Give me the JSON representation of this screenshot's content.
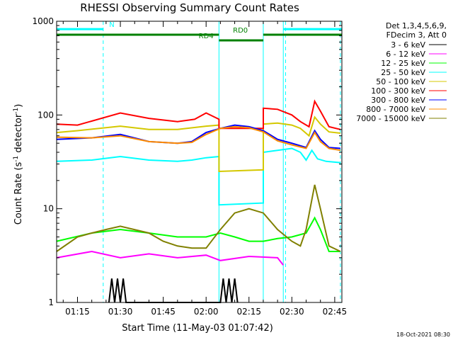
{
  "chart_data": {
    "type": "line",
    "title": "RHESSI Observing Summary Count Rates",
    "xlabel": "Start Time (11-May-03 01:07:42)",
    "ylabel_main": "Count Rate (s",
    "ylabel_exp1": "-1",
    "ylabel_mid": " detector",
    "ylabel_exp2": "-1",
    "ylabel_end": ")",
    "yscale": "log",
    "ylim": [
      1,
      1000
    ],
    "xlim_minutes": [
      67.7,
      167.5
    ],
    "xticks": [
      {
        "t": 75,
        "label": "01:15"
      },
      {
        "t": 90,
        "label": "01:30"
      },
      {
        "t": 105,
        "label": "01:45"
      },
      {
        "t": 120,
        "label": "02:00"
      },
      {
        "t": 135,
        "label": "02:15"
      },
      {
        "t": 150,
        "label": "02:30"
      },
      {
        "t": 165,
        "label": "02:45"
      }
    ],
    "yticks": [
      {
        "v": 1,
        "label": "1"
      },
      {
        "v": 10,
        "label": "10"
      },
      {
        "v": 100,
        "label": "100"
      },
      {
        "v": 1000,
        "label": "1000"
      }
    ],
    "legend_header": [
      "Det 1,3,4,5,6,9,",
      "FDecim 3, Att 0"
    ],
    "series": [
      {
        "name": "3 - 6 keV",
        "color": "#000000",
        "points": [
          [
            86,
            1
          ],
          [
            87,
            1.8
          ],
          [
            88,
            1
          ],
          [
            89,
            1.8
          ],
          [
            90,
            1
          ],
          [
            91,
            1.8
          ],
          [
            92,
            1
          ],
          [
            125,
            1
          ],
          [
            126,
            1.8
          ],
          [
            127,
            1
          ],
          [
            128,
            1.8
          ],
          [
            129,
            1
          ],
          [
            130,
            1.8
          ],
          [
            131,
            1
          ]
        ]
      },
      {
        "name": "6 - 12 keV",
        "color": "#ff00ff",
        "points": [
          [
            67.7,
            3
          ],
          [
            80,
            3.5
          ],
          [
            90,
            3
          ],
          [
            100,
            3.3
          ],
          [
            110,
            3
          ],
          [
            120,
            3.2
          ],
          [
            125,
            2.8
          ],
          [
            135,
            3.1
          ],
          [
            145,
            3
          ],
          [
            147,
            2.5
          ]
        ]
      },
      {
        "name": "12 - 25 keV",
        "color": "#00ff00",
        "points": [
          [
            67.7,
            4.5
          ],
          [
            80,
            5.5
          ],
          [
            90,
            6
          ],
          [
            100,
            5.5
          ],
          [
            110,
            5
          ],
          [
            120,
            5
          ],
          [
            125,
            5.5
          ],
          [
            130,
            5
          ],
          [
            135,
            4.5
          ],
          [
            140,
            4.5
          ],
          [
            145,
            4.8
          ],
          [
            150,
            5
          ],
          [
            155,
            5.5
          ],
          [
            158,
            8
          ],
          [
            160,
            6
          ],
          [
            163,
            3.5
          ],
          [
            167,
            3.5
          ]
        ]
      },
      {
        "name": "25 - 50 keV",
        "color": "#00ffff",
        "points": [
          [
            67.7,
            32
          ],
          [
            80,
            33
          ],
          [
            90,
            36
          ],
          [
            100,
            33
          ],
          [
            110,
            32
          ],
          [
            115,
            33
          ],
          [
            120,
            35
          ],
          [
            124.5,
            36
          ],
          [
            124.5,
            11
          ],
          [
            140,
            11.5
          ],
          [
            140,
            40
          ],
          [
            145,
            42
          ],
          [
            150,
            44
          ],
          [
            153,
            40
          ],
          [
            155,
            33
          ],
          [
            157,
            42
          ],
          [
            159,
            34
          ],
          [
            162,
            32
          ],
          [
            167,
            31
          ]
        ]
      },
      {
        "name": "50 - 100 keV",
        "color": "#d4c800",
        "points": [
          [
            67.7,
            65
          ],
          [
            75,
            68
          ],
          [
            90,
            76
          ],
          [
            100,
            70
          ],
          [
            110,
            70
          ],
          [
            120,
            76
          ],
          [
            124.5,
            78
          ],
          [
            124.5,
            25
          ],
          [
            140,
            26
          ],
          [
            140,
            80
          ],
          [
            145,
            82
          ],
          [
            150,
            78
          ],
          [
            153,
            72
          ],
          [
            156,
            60
          ],
          [
            158,
            95
          ],
          [
            160,
            80
          ],
          [
            163,
            66
          ],
          [
            167,
            64
          ]
        ]
      },
      {
        "name": "100 - 300 keV",
        "color": "#ff0000",
        "points": [
          [
            67.7,
            80
          ],
          [
            75,
            78
          ],
          [
            90,
            105
          ],
          [
            100,
            92
          ],
          [
            110,
            85
          ],
          [
            116,
            90
          ],
          [
            120,
            105
          ],
          [
            124.5,
            90
          ],
          [
            124.5,
            72
          ],
          [
            140,
            72
          ],
          [
            140,
            118
          ],
          [
            145,
            115
          ],
          [
            150,
            100
          ],
          [
            153,
            85
          ],
          [
            156,
            75
          ],
          [
            158,
            140
          ],
          [
            160,
            110
          ],
          [
            163,
            75
          ],
          [
            167,
            70
          ]
        ]
      },
      {
        "name": "300 - 800 keV",
        "color": "#0000ff",
        "points": [
          [
            67.7,
            55
          ],
          [
            80,
            57
          ],
          [
            90,
            62
          ],
          [
            100,
            52
          ],
          [
            110,
            50
          ],
          [
            115,
            52
          ],
          [
            120,
            65
          ],
          [
            125,
            72
          ],
          [
            130,
            78
          ],
          [
            135,
            75
          ],
          [
            140,
            68
          ],
          [
            145,
            55
          ],
          [
            150,
            50
          ],
          [
            155,
            45
          ],
          [
            158,
            68
          ],
          [
            160,
            55
          ],
          [
            163,
            45
          ],
          [
            167,
            44
          ]
        ]
      },
      {
        "name": "800 - 7000 keV",
        "color": "#ff8c00",
        "points": [
          [
            67.7,
            58
          ],
          [
            80,
            57
          ],
          [
            90,
            60
          ],
          [
            100,
            52
          ],
          [
            110,
            50
          ],
          [
            115,
            51
          ],
          [
            120,
            62
          ],
          [
            125,
            72
          ],
          [
            130,
            75
          ],
          [
            135,
            73
          ],
          [
            140,
            66
          ],
          [
            145,
            53
          ],
          [
            150,
            48
          ],
          [
            155,
            44
          ],
          [
            158,
            65
          ],
          [
            160,
            52
          ],
          [
            163,
            44
          ],
          [
            167,
            42
          ]
        ]
      },
      {
        "name": "7000 - 15000 keV",
        "color": "#808000",
        "points": [
          [
            67.7,
            3.5
          ],
          [
            75,
            5
          ],
          [
            80,
            5.5
          ],
          [
            85,
            6
          ],
          [
            90,
            6.5
          ],
          [
            100,
            5.5
          ],
          [
            105,
            4.5
          ],
          [
            110,
            4
          ],
          [
            115,
            3.8
          ],
          [
            120,
            3.8
          ],
          [
            125,
            6
          ],
          [
            130,
            9
          ],
          [
            135,
            10
          ],
          [
            140,
            9
          ],
          [
            145,
            6
          ],
          [
            150,
            4.5
          ],
          [
            153,
            4
          ],
          [
            155,
            6
          ],
          [
            158,
            18
          ],
          [
            160,
            10
          ],
          [
            163,
            4
          ],
          [
            167,
            3.5
          ]
        ]
      }
    ],
    "annotations": [
      {
        "label": "N",
        "color": "#00ffff",
        "y": 0.972,
        "segments": [
          [
            67.7,
            84
          ],
          [
            147,
            167.5
          ]
        ],
        "label_t": 87
      },
      {
        "label": "RD0",
        "color": "#008000",
        "y": 0.952,
        "segments": [
          [
            67.7,
            124.5
          ],
          [
            140,
            167.5
          ]
        ],
        "label_t": 132
      },
      {
        "label": "RD4",
        "color": "#008000",
        "y": 0.932,
        "segments": [
          [
            124.5,
            140
          ]
        ],
        "label_t": 120
      }
    ],
    "vlines": [
      {
        "t": 67.7,
        "style": "solid"
      },
      {
        "t": 84,
        "style": "dashed"
      },
      {
        "t": 124.5,
        "style": "solid"
      },
      {
        "t": 140,
        "style": "solid"
      },
      {
        "t": 147,
        "style": "solid"
      },
      {
        "t": 147.8,
        "style": "dashed"
      },
      {
        "t": 167,
        "style": "dashed"
      }
    ],
    "grid": false
  },
  "footer_date": "18-Oct-2021 08:30"
}
